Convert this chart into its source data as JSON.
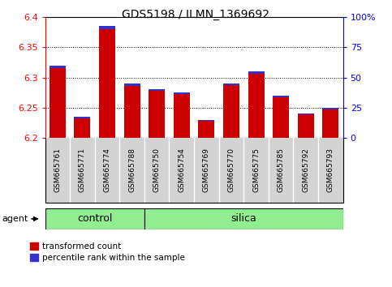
{
  "title": "GDS5198 / ILMN_1369692",
  "samples": [
    "GSM665761",
    "GSM665771",
    "GSM665774",
    "GSM665788",
    "GSM665750",
    "GSM665754",
    "GSM665769",
    "GSM665770",
    "GSM665775",
    "GSM665785",
    "GSM665792",
    "GSM665793"
  ],
  "n_control": 4,
  "red_values": [
    6.32,
    6.235,
    6.385,
    6.29,
    6.28,
    6.275,
    6.23,
    6.29,
    6.31,
    6.27,
    6.24,
    6.25
  ],
  "blue_pct": [
    2.0,
    1.5,
    2.5,
    1.8,
    1.2,
    1.2,
    0.8,
    1.0,
    1.8,
    1.2,
    0.8,
    1.2
  ],
  "ylim_left": [
    6.2,
    6.4
  ],
  "ylim_right": [
    0,
    100
  ],
  "yticks_left": [
    6.2,
    6.25,
    6.3,
    6.35,
    6.4
  ],
  "yticks_right": [
    0,
    25,
    50,
    75,
    100
  ],
  "ytick_labels_right": [
    "0",
    "25",
    "50",
    "75",
    "100%"
  ],
  "bar_width": 0.65,
  "red_color": "#cc0000",
  "blue_color": "#3333cc",
  "control_color": "#90ee90",
  "silica_color": "#90ee90",
  "tickbox_color": "#d3d3d3",
  "agent_label": "agent",
  "legend_red": "transformed count",
  "legend_blue": "percentile rank within the sample",
  "base": 6.2,
  "right_axis_color": "blue",
  "left_axis_color": "red",
  "title_fontsize": 10
}
